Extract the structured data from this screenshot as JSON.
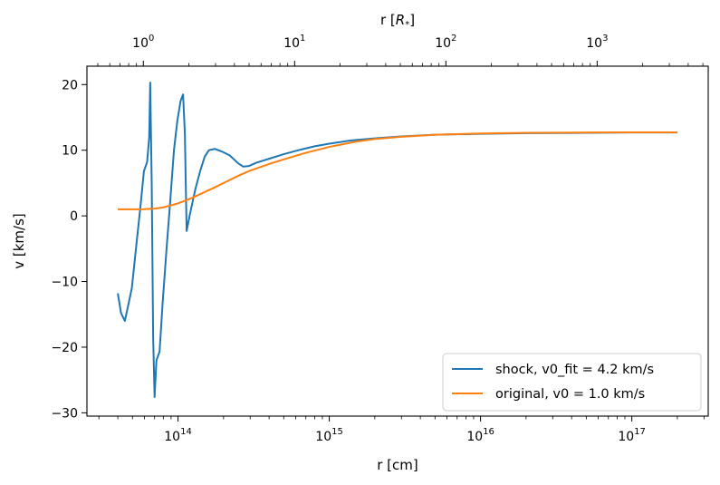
{
  "chart_data": {
    "type": "line",
    "xscale": "log",
    "xlabel": "r [cm]",
    "ylabel": "v [km/s]",
    "xlim": [
      25000000000000.0,
      3.2e+17
    ],
    "ylim": [
      -30.5,
      22.8
    ],
    "x_ticks": [
      {
        "value": 100000000000000.0,
        "base": "10",
        "exp": "14"
      },
      {
        "value": 1000000000000000.0,
        "base": "10",
        "exp": "15"
      },
      {
        "value": 1e+16,
        "base": "10",
        "exp": "16"
      },
      {
        "value": 1e+17,
        "base": "10",
        "exp": "17"
      }
    ],
    "y_ticks": [
      {
        "value": 20,
        "label": "20"
      },
      {
        "value": 10,
        "label": "10"
      },
      {
        "value": 0,
        "label": "0"
      },
      {
        "value": -10,
        "label": "−10"
      },
      {
        "value": -20,
        "label": "−20"
      },
      {
        "value": -30,
        "label": "−30"
      }
    ],
    "top_axis": {
      "label_prefix": "r [",
      "label_var": "R",
      "label_sub": "*",
      "label_suffix": "]",
      "conversion_cm_per_unit": 59000000000000.0,
      "ticks": [
        {
          "value": 1,
          "base": "10",
          "exp": "0"
        },
        {
          "value": 10,
          "base": "10",
          "exp": "1"
        },
        {
          "value": 100,
          "base": "10",
          "exp": "2"
        },
        {
          "value": 1000,
          "base": "10",
          "exp": "3"
        }
      ]
    },
    "legend": {
      "position": "lower right",
      "entries": [
        "shock, v0_fit = 4.2 km/s",
        "original, v0 = 1.0 km/s"
      ]
    },
    "series": [
      {
        "name": "shock, v0_fit = 4.2 km/s",
        "color": "#1f77b4",
        "points": [
          [
            40000000000000.0,
            -11.8
          ],
          [
            42000000000000.0,
            -14.8
          ],
          [
            44500000000000.0,
            -16.0
          ],
          [
            47000000000000.0,
            -13.5
          ],
          [
            49500000000000.0,
            -11.0
          ],
          [
            53000000000000.0,
            -4.5
          ],
          [
            56500000000000.0,
            1.5
          ],
          [
            59500000000000.0,
            6.8
          ],
          [
            62500000000000.0,
            8.2
          ],
          [
            64500000000000.0,
            12.0
          ],
          [
            65500000000000.0,
            20.3
          ],
          [
            67000000000000.0,
            5.0
          ],
          [
            68500000000000.0,
            -18.5
          ],
          [
            70000000000000.0,
            -27.6
          ],
          [
            72000000000000.0,
            -22.0
          ],
          [
            75500000000000.0,
            -20.7
          ],
          [
            79000000000000.0,
            -13.5
          ],
          [
            84000000000000.0,
            -5.0
          ],
          [
            89000000000000.0,
            2.5
          ],
          [
            94000000000000.0,
            10.0
          ],
          [
            99000000000000.0,
            14.5
          ],
          [
            104000000000000.0,
            17.5
          ],
          [
            108000000000000.0,
            18.5
          ],
          [
            111000000000000.0,
            12.5
          ],
          [
            114000000000000.0,
            -2.3
          ],
          [
            120000000000000.0,
            0.3
          ],
          [
            130000000000000.0,
            4.0
          ],
          [
            140000000000000.0,
            6.8
          ],
          [
            150000000000000.0,
            9.0
          ],
          [
            160000000000000.0,
            10.0
          ],
          [
            175000000000000.0,
            10.2
          ],
          [
            195000000000000.0,
            9.8
          ],
          [
            220000000000000.0,
            9.2
          ],
          [
            250000000000000.0,
            8.0
          ],
          [
            270000000000000.0,
            7.5
          ],
          [
            295000000000000.0,
            7.6
          ],
          [
            330000000000000.0,
            8.1
          ],
          [
            400000000000000.0,
            8.7
          ],
          [
            500000000000000.0,
            9.4
          ],
          [
            650000000000000.0,
            10.1
          ],
          [
            800000000000000.0,
            10.6
          ],
          [
            1000000000000000.0,
            11.0
          ],
          [
            1400000000000000.0,
            11.5
          ],
          [
            2000000000000000.0,
            11.8
          ],
          [
            3000000000000000.0,
            12.1
          ],
          [
            5000000000000000.0,
            12.35
          ],
          [
            1e+16,
            12.5
          ],
          [
            2e+16,
            12.6
          ],
          [
            5e+16,
            12.65
          ],
          [
            1e+17,
            12.7
          ],
          [
            2e+17,
            12.7
          ]
        ]
      },
      {
        "name": "original, v0 = 1.0 km/s",
        "color": "#ff7f0e",
        "points": [
          [
            40000000000000.0,
            1.0
          ],
          [
            50000000000000.0,
            1.0
          ],
          [
            60000000000000.0,
            1.02
          ],
          [
            70000000000000.0,
            1.1
          ],
          [
            80000000000000.0,
            1.3
          ],
          [
            90000000000000.0,
            1.6
          ],
          [
            100000000000000.0,
            1.9
          ],
          [
            120000000000000.0,
            2.6
          ],
          [
            140000000000000.0,
            3.3
          ],
          [
            170000000000000.0,
            4.2
          ],
          [
            200000000000000.0,
            5.0
          ],
          [
            250000000000000.0,
            6.1
          ],
          [
            300000000000000.0,
            6.9
          ],
          [
            400000000000000.0,
            7.9
          ],
          [
            500000000000000.0,
            8.6
          ],
          [
            700000000000000.0,
            9.6
          ],
          [
            1000000000000000.0,
            10.5
          ],
          [
            1500000000000000.0,
            11.3
          ],
          [
            2000000000000000.0,
            11.7
          ],
          [
            3000000000000000.0,
            12.05
          ],
          [
            5000000000000000.0,
            12.35
          ],
          [
            1e+16,
            12.55
          ],
          [
            2e+16,
            12.65
          ],
          [
            5e+16,
            12.7
          ],
          [
            1e+17,
            12.72
          ],
          [
            2e+17,
            12.72
          ]
        ]
      }
    ]
  }
}
